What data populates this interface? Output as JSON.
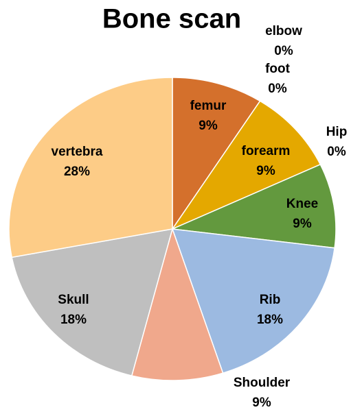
{
  "chart_data": {
    "type": "pie",
    "title": "Bone scan",
    "categories": [
      "femur",
      "elbow",
      "foot",
      "forearm",
      "Hip",
      "Knee",
      "Rib",
      "Shoulder",
      "Skull",
      "vertebra"
    ],
    "values": [
      9,
      0,
      0,
      9,
      0,
      9,
      18,
      9,
      18,
      28
    ],
    "value_labels": [
      "9%",
      "0%",
      "0%",
      "9%",
      "0%",
      "9%",
      "18%",
      "9%",
      "18%",
      "28%"
    ],
    "colors": [
      "#d4702c",
      "#4472c4",
      "#a5a5a5",
      "#e4a800",
      "#5b9bd5",
      "#63993e",
      "#9cbae1",
      "#f0a88c",
      "#bfbfbf",
      "#fdcc87"
    ]
  }
}
